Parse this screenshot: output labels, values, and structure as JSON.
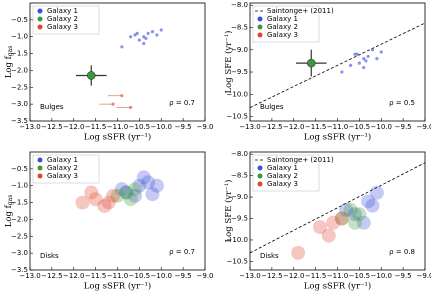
{
  "chart_data": [
    {
      "type": "scatter",
      "xlabel": "Log sSFR (yr⁻¹)",
      "ylabel": {
        "main": "Log f",
        "sub": "gas"
      },
      "annotation": "Bulges",
      "rho": "ρ = 0.7",
      "xlim": [
        -13,
        -9
      ],
      "ylim": [
        -3.5,
        0
      ],
      "xticks": [
        {
          "value": -13,
          "label": "−13.0"
        },
        {
          "value": -12.5,
          "label": "−12.5"
        },
        {
          "value": -12,
          "label": "−12.0"
        },
        {
          "value": -11.5,
          "label": "−11.5"
        },
        {
          "value": -11,
          "label": "−11.0"
        },
        {
          "value": -10.5,
          "label": "−10.5"
        },
        {
          "value": -10,
          "label": "−10.0"
        },
        {
          "value": -9.5,
          "label": "−9.5"
        },
        {
          "value": -9,
          "label": "−9.0"
        }
      ],
      "yticks": [
        {
          "value": -3.5,
          "label": "−3.5"
        },
        {
          "value": -3,
          "label": "−3.0"
        },
        {
          "value": -2.5,
          "label": "−2.5"
        },
        {
          "value": -2,
          "label": "−2.0"
        },
        {
          "value": -1.5,
          "label": "−1.5"
        },
        {
          "value": -1,
          "label": "−1.0"
        },
        {
          "value": -0.5,
          "label": "−0.5"
        }
      ],
      "series": [
        {
          "name": "Galaxy 1",
          "color": "#3b4fd8",
          "x": [
            -10.6,
            -10.4,
            -10.3,
            -10.5,
            -10.2,
            -10.7,
            -10.4,
            -10.1,
            -10.55,
            -10.35,
            -10.9,
            -10.0
          ],
          "y": [
            -0.95,
            -1.0,
            -0.9,
            -1.1,
            -0.85,
            -1.0,
            -1.2,
            -0.95,
            -0.9,
            -1.05,
            -1.3,
            -0.8
          ]
        },
        {
          "name": "Galaxy 2",
          "color": "#3a9a3a",
          "x": [
            -11.6
          ],
          "y": [
            -2.15
          ],
          "xerr": [
            0.35
          ],
          "yerr": [
            0.3
          ]
        },
        {
          "name": "Galaxy 3",
          "color": "#e0452f",
          "x": [
            -10.9,
            -11.1,
            -10.7
          ],
          "y": [
            -2.75,
            -3.0,
            -3.1
          ],
          "upper_limit": true
        }
      ]
    },
    {
      "type": "scatter",
      "xlabel": "Log sSFR (yr⁻¹)",
      "ylabel": {
        "main": "Log SFE (yr⁻¹)"
      },
      "annotation": "Bulges",
      "rho": "ρ = 0.5",
      "xlim": [
        -13,
        -9
      ],
      "ylim": [
        -10.6,
        -7.95
      ],
      "xticks": [
        {
          "value": -13,
          "label": "−13.0"
        },
        {
          "value": -12.5,
          "label": "−12.5"
        },
        {
          "value": -12,
          "label": "−12.0"
        },
        {
          "value": -11.5,
          "label": "−11.5"
        },
        {
          "value": -11,
          "label": "−11.0"
        },
        {
          "value": -10.5,
          "label": "−10.5"
        },
        {
          "value": -10,
          "label": "−10.0"
        },
        {
          "value": -9.5,
          "label": "−9.5"
        },
        {
          "value": -9,
          "label": "−9.0"
        }
      ],
      "yticks": [
        {
          "value": -10.5,
          "label": "−10.5"
        },
        {
          "value": -10,
          "label": "−10.0"
        },
        {
          "value": -9.5,
          "label": "−9.5"
        },
        {
          "value": -9,
          "label": "−9.0"
        },
        {
          "value": -8.5,
          "label": "−8.5"
        },
        {
          "value": -8,
          "label": "−8.0"
        }
      ],
      "series": [
        {
          "name": "Saintonge+ (2011)",
          "color": "#000000",
          "style": "dashed",
          "x": [
            -13,
            -9
          ],
          "y": [
            -10.3,
            -8.4
          ]
        },
        {
          "name": "Galaxy 1",
          "color": "#3b4fd8",
          "x": [
            -10.6,
            -10.4,
            -10.3,
            -10.5,
            -10.2,
            -10.7,
            -10.4,
            -10.1,
            -10.55,
            -10.35,
            -10.9,
            -10.0
          ],
          "y": [
            -9.1,
            -9.2,
            -9.15,
            -9.3,
            -9.0,
            -9.35,
            -9.4,
            -9.2,
            -9.1,
            -9.25,
            -9.5,
            -9.05
          ]
        },
        {
          "name": "Galaxy 2",
          "color": "#3a9a3a",
          "x": [
            -11.6
          ],
          "y": [
            -9.3
          ],
          "xerr": [
            0.35
          ],
          "yerr": [
            0.3
          ]
        },
        {
          "name": "Galaxy 3",
          "color": "#e0452f",
          "x": [],
          "y": []
        }
      ]
    },
    {
      "type": "scatter",
      "xlabel": "Log sSFR (yr⁻¹)",
      "ylabel": {
        "main": "Log f",
        "sub": "gas"
      },
      "annotation": "Disks",
      "rho": "ρ = 0.7",
      "xlim": [
        -13,
        -9
      ],
      "ylim": [
        -3.5,
        0
      ],
      "xticks": [
        {
          "value": -13,
          "label": "−13.0"
        },
        {
          "value": -12.5,
          "label": "−12.5"
        },
        {
          "value": -12,
          "label": "−12.0"
        },
        {
          "value": -11.5,
          "label": "−11.5"
        },
        {
          "value": -11,
          "label": "−11.0"
        },
        {
          "value": -10.5,
          "label": "−10.5"
        },
        {
          "value": -10,
          "label": "−10.0"
        },
        {
          "value": -9.5,
          "label": "−9.5"
        },
        {
          "value": -9,
          "label": "−9.0"
        }
      ],
      "yticks": [
        {
          "value": -3.5,
          "label": "−3.5"
        },
        {
          "value": -3,
          "label": "−3.0"
        },
        {
          "value": -2.5,
          "label": "−2.5"
        },
        {
          "value": -2,
          "label": "−2.0"
        },
        {
          "value": -1.5,
          "label": "−1.5"
        },
        {
          "value": -1,
          "label": "−1.0"
        },
        {
          "value": -0.5,
          "label": "−0.5"
        }
      ],
      "series": [
        {
          "name": "Galaxy 1",
          "color": "#3b4fd8",
          "x": [
            -10.8,
            -10.5,
            -10.3,
            -10.1,
            -10.6,
            -10.4,
            -10.9,
            -10.2
          ],
          "y": [
            -1.2,
            -1.0,
            -0.9,
            -1.0,
            -1.3,
            -0.75,
            -1.1,
            -1.25
          ]
        },
        {
          "name": "Galaxy 2",
          "color": "#3a9a3a",
          "x": [
            -11.0,
            -10.8,
            -10.6,
            -10.7
          ],
          "y": [
            -1.3,
            -1.2,
            -1.1,
            -1.4
          ]
        },
        {
          "name": "Galaxy 3",
          "color": "#e0452f",
          "x": [
            -11.8,
            -11.5,
            -11.3,
            -11.1,
            -11.6,
            -11.2
          ],
          "y": [
            -1.5,
            -1.4,
            -1.6,
            -1.3,
            -1.2,
            -1.5
          ]
        }
      ]
    },
    {
      "type": "scatter",
      "xlabel": "Log sSFR (yr⁻¹)",
      "ylabel": {
        "main": "Log SFE (yr⁻¹)"
      },
      "annotation": "Disks",
      "rho": "ρ = 0.8",
      "xlim": [
        -13,
        -9
      ],
      "ylim": [
        -10.7,
        -7.95
      ],
      "xticks": [
        {
          "value": -13,
          "label": "−13.0"
        },
        {
          "value": -12.5,
          "label": "−12.5"
        },
        {
          "value": -12,
          "label": "−12.0"
        },
        {
          "value": -11.5,
          "label": "−11.5"
        },
        {
          "value": -11,
          "label": "−11.0"
        },
        {
          "value": -10.5,
          "label": "−10.5"
        },
        {
          "value": -10,
          "label": "−10.0"
        },
        {
          "value": -9.5,
          "label": "−9.5"
        },
        {
          "value": -9,
          "label": "−9.0"
        }
      ],
      "yticks": [
        {
          "value": -10.5,
          "label": "−10.5"
        },
        {
          "value": -10,
          "label": "−10.0"
        },
        {
          "value": -9.5,
          "label": "−9.5"
        },
        {
          "value": -9,
          "label": "−9.0"
        },
        {
          "value": -8.5,
          "label": "−8.5"
        },
        {
          "value": -8,
          "label": "−8.0"
        }
      ],
      "series": [
        {
          "name": "Saintonge+ (2011)",
          "color": "#000000",
          "style": "dashed",
          "x": [
            -13,
            -9
          ],
          "y": [
            -10.3,
            -8.2
          ]
        },
        {
          "name": "Galaxy 1",
          "color": "#3b4fd8",
          "x": [
            -10.6,
            -10.3,
            -10.1,
            -10.4,
            -10.8,
            -10.2
          ],
          "y": [
            -9.4,
            -9.1,
            -8.9,
            -9.6,
            -9.3,
            -9.2
          ]
        },
        {
          "name": "Galaxy 2",
          "color": "#3a9a3a",
          "x": [
            -10.9,
            -10.7,
            -10.5,
            -10.6
          ],
          "y": [
            -9.5,
            -9.3,
            -9.4,
            -9.6
          ]
        },
        {
          "name": "Galaxy 3",
          "color": "#e0452f",
          "x": [
            -11.4,
            -11.1,
            -10.9,
            -11.2,
            -11.9
          ],
          "y": [
            -9.7,
            -9.6,
            -9.5,
            -9.9,
            -10.3
          ]
        }
      ]
    }
  ]
}
